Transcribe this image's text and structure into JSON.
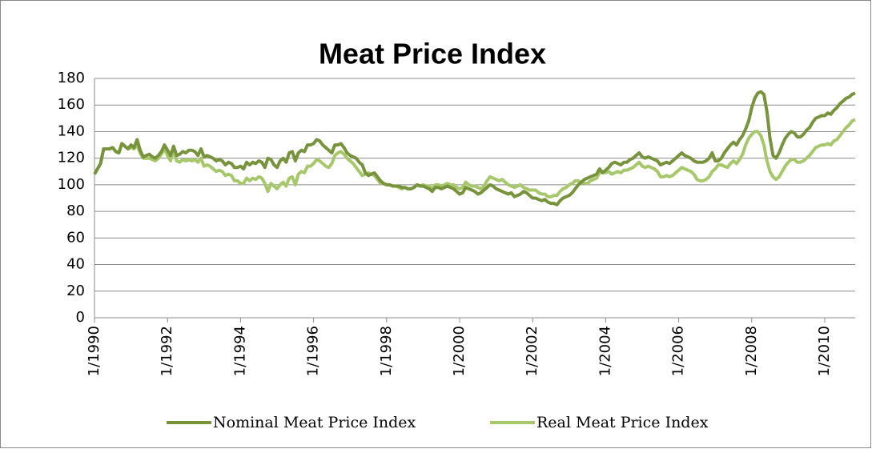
{
  "chart_data": {
    "type": "line",
    "title": "Meat Price Index",
    "categories": [
      "1/1990",
      null,
      null,
      null,
      null,
      null,
      null,
      null,
      null,
      null,
      null,
      null,
      null,
      null,
      null,
      null,
      null,
      null,
      null,
      null,
      null,
      null,
      null,
      null,
      "1/1992",
      null,
      null,
      null,
      null,
      null,
      null,
      null,
      null,
      null,
      null,
      null,
      null,
      null,
      null,
      null,
      null,
      null,
      null,
      null,
      null,
      null,
      null,
      null,
      "1/1994",
      null,
      null,
      null,
      null,
      null,
      null,
      null,
      null,
      null,
      null,
      null,
      null,
      null,
      null,
      null,
      null,
      null,
      null,
      null,
      null,
      null,
      null,
      null,
      "1/1996",
      null,
      null,
      null,
      null,
      null,
      null,
      null,
      null,
      null,
      null,
      null,
      null,
      null,
      null,
      null,
      null,
      null,
      null,
      null,
      null,
      null,
      null,
      null,
      "1/1998",
      null,
      null,
      null,
      null,
      null,
      null,
      null,
      null,
      null,
      null,
      null,
      null,
      null,
      null,
      null,
      null,
      null,
      null,
      null,
      null,
      null,
      null,
      null,
      "1/2000",
      null,
      null,
      null,
      null,
      null,
      null,
      null,
      null,
      null,
      null,
      null,
      null,
      null,
      null,
      null,
      null,
      null,
      null,
      null,
      null,
      null,
      null,
      null,
      "1/2002",
      null,
      null,
      null,
      null,
      null,
      null,
      null,
      null,
      null,
      null,
      null,
      null,
      null,
      null,
      null,
      null,
      null,
      null,
      null,
      null,
      null,
      null,
      null,
      "1/2004",
      null,
      null,
      null,
      null,
      null,
      null,
      null,
      null,
      null,
      null,
      null,
      null,
      null,
      null,
      null,
      null,
      null,
      null,
      null,
      null,
      null,
      null,
      null,
      "1/2006",
      null,
      null,
      null,
      null,
      null,
      null,
      null,
      null,
      null,
      null,
      null,
      null,
      null,
      null,
      null,
      null,
      null,
      null,
      null,
      null,
      null,
      null,
      null,
      "1/2008",
      null,
      null,
      null,
      null,
      null,
      null,
      null,
      null,
      null,
      null,
      null,
      null,
      null,
      null,
      null,
      null,
      null,
      null,
      null,
      null,
      null,
      null,
      null,
      "1/2010",
      null,
      null,
      null,
      null,
      null,
      null,
      null,
      null,
      null,
      null
    ],
    "series": [
      {
        "name": "Nominal Meat Price Index",
        "color": "#77933c",
        "values": [
          108,
          112,
          116,
          127,
          127,
          127,
          128,
          125,
          124,
          131,
          129,
          127,
          130,
          128,
          134,
          126,
          121,
          122,
          123,
          121,
          120,
          122,
          125,
          130,
          126,
          122,
          129,
          122,
          123,
          125,
          124,
          126,
          126,
          125,
          122,
          127,
          121,
          122,
          121,
          120,
          118,
          119,
          118,
          115,
          117,
          116,
          113,
          113,
          114,
          112,
          117,
          115,
          117,
          116,
          118,
          117,
          113,
          120,
          119,
          115,
          113,
          118,
          120,
          117,
          124,
          125,
          118,
          124,
          126,
          125,
          130,
          130,
          131,
          134,
          133,
          130,
          128,
          126,
          124,
          130,
          130,
          131,
          128,
          124,
          122,
          121,
          120,
          117,
          115,
          109,
          107,
          108,
          109,
          106,
          103,
          101,
          100,
          100,
          99,
          99,
          99,
          98,
          98,
          97,
          97,
          98,
          100,
          99,
          99,
          98,
          97,
          95,
          98,
          98,
          97,
          98,
          99,
          98,
          97,
          95,
          93,
          94,
          98,
          97,
          96,
          95,
          93,
          94,
          96,
          98,
          100,
          99,
          97,
          96,
          95,
          94,
          93,
          94,
          91,
          92,
          93,
          95,
          94,
          92,
          90,
          90,
          89,
          88,
          89,
          87,
          86,
          86,
          85,
          88,
          90,
          91,
          92,
          94,
          97,
          100,
          102,
          104,
          105,
          106,
          107,
          108,
          112,
          109,
          111,
          113,
          116,
          117,
          116,
          115,
          117,
          117,
          119,
          120,
          122,
          124,
          121,
          120,
          121,
          120,
          119,
          118,
          115,
          116,
          117,
          116,
          118,
          120,
          122,
          124,
          122,
          121,
          120,
          118,
          117,
          117,
          117,
          118,
          120,
          124,
          118,
          118,
          120,
          124,
          127,
          130,
          132,
          130,
          134,
          137,
          142,
          148,
          158,
          165,
          169,
          170,
          168,
          155,
          135,
          122,
          120,
          124,
          130,
          135,
          138,
          140,
          139,
          136,
          136,
          138,
          141,
          143,
          147,
          150,
          151,
          152,
          152,
          154,
          153,
          156,
          158,
          161,
          163,
          165,
          166,
          168,
          169
        ]
      },
      {
        "name": "Real Meat Price Index",
        "color": "#a6c86a",
        "values": [
          108,
          112,
          116,
          127,
          127,
          127,
          128,
          125,
          124,
          131,
          129,
          127,
          128,
          127,
          130,
          124,
          120,
          120,
          120,
          119,
          118,
          120,
          123,
          127,
          122,
          118,
          126,
          118,
          117,
          119,
          118,
          119,
          118,
          119,
          117,
          120,
          114,
          115,
          114,
          112,
          110,
          111,
          110,
          107,
          108,
          107,
          103,
          103,
          101,
          101,
          105,
          103,
          105,
          104,
          106,
          105,
          101,
          95,
          101,
          99,
          97,
          100,
          102,
          99,
          105,
          106,
          100,
          108,
          110,
          109,
          114,
          114,
          116,
          119,
          118,
          116,
          114,
          113,
          116,
          122,
          124,
          125,
          123,
          120,
          118,
          116,
          113,
          110,
          107,
          108,
          109,
          108,
          107,
          104,
          101,
          101,
          100,
          100,
          99,
          99,
          98,
          97,
          98,
          97,
          97,
          98,
          100,
          99,
          100,
          99,
          99,
          97,
          100,
          100,
          99,
          100,
          101,
          100,
          100,
          98,
          97,
          98,
          102,
          100,
          99,
          99,
          98,
          97,
          99,
          103,
          106,
          105,
          104,
          103,
          104,
          102,
          100,
          99,
          98,
          99,
          100,
          98,
          97,
          96,
          96,
          96,
          94,
          93,
          93,
          91,
          91,
          92,
          92,
          95,
          97,
          98,
          100,
          101,
          103,
          103,
          102,
          101,
          101,
          103,
          104,
          105,
          109,
          110,
          109,
          110,
          108,
          109,
          110,
          109,
          111,
          111,
          112,
          113,
          115,
          117,
          114,
          113,
          114,
          113,
          112,
          110,
          106,
          106,
          107,
          106,
          107,
          109,
          111,
          113,
          112,
          111,
          110,
          108,
          104,
          103,
          103,
          104,
          106,
          110,
          112,
          115,
          115,
          114,
          113,
          116,
          118,
          116,
          119,
          123,
          130,
          135,
          138,
          140,
          140,
          137,
          130,
          118,
          110,
          106,
          104,
          106,
          110,
          114,
          117,
          119,
          119,
          117,
          117,
          118,
          120,
          122,
          125,
          128,
          129,
          130,
          130,
          131,
          130,
          133,
          134,
          137,
          140,
          143,
          145,
          148,
          149
        ]
      }
    ],
    "ylim": [
      0,
      180
    ],
    "yticks": [
      0,
      20,
      40,
      60,
      80,
      100,
      120,
      140,
      160,
      180
    ],
    "grid": true
  }
}
